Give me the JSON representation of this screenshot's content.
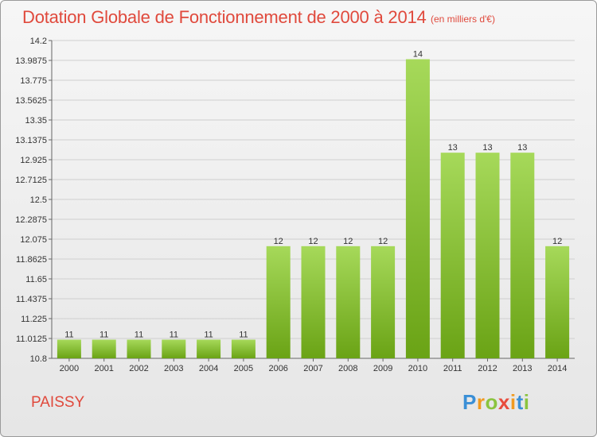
{
  "title": "Dotation Globale de Fonctionnement de 2000 à 2014",
  "subtitle": "(en milliers d'€)",
  "location": "PAISSY",
  "logo": {
    "p": "P",
    "r": "r",
    "o": "o",
    "x": "x",
    "i1": "i",
    "t": "t",
    "i2": "i"
  },
  "colors": {
    "bar_top": "#a6d95a",
    "bar_bottom": "#6aa315",
    "accent": "#e0493c",
    "grid": "#cfcfcf"
  },
  "chart_data": {
    "type": "bar",
    "title": "Dotation Globale de Fonctionnement de 2000 à 2014",
    "subtitle": "(en milliers d'€)",
    "xlabel": "",
    "ylabel": "",
    "categories": [
      "2000",
      "2001",
      "2002",
      "2003",
      "2004",
      "2005",
      "2006",
      "2007",
      "2008",
      "2009",
      "2010",
      "2011",
      "2012",
      "2013",
      "2014"
    ],
    "values": [
      11,
      11,
      11,
      11,
      11,
      11,
      12,
      12,
      12,
      12,
      14,
      13,
      13,
      13,
      12
    ],
    "data_labels": [
      "11",
      "11",
      "11",
      "11",
      "11",
      "11",
      "12",
      "12",
      "12",
      "12",
      "14",
      "13",
      "13",
      "13",
      "12"
    ],
    "ylim": [
      10.8,
      14.2
    ],
    "yticks": [
      10.8,
      11.0125,
      11.225,
      11.4375,
      11.65,
      11.8625,
      12.075,
      12.2875,
      12.5,
      12.7125,
      12.925,
      13.1375,
      13.35,
      13.5625,
      13.775,
      13.9875,
      14.2
    ],
    "ytick_labels": [
      "10.8",
      "11.0125",
      "11.225",
      "11.4375",
      "11.65",
      "11.8625",
      "12.075",
      "12.2875",
      "12.5",
      "12.7125",
      "12.925",
      "13.1375",
      "13.35",
      "13.5625",
      "13.775",
      "13.9875",
      "14.2"
    ],
    "grid": true,
    "legend": "none"
  }
}
